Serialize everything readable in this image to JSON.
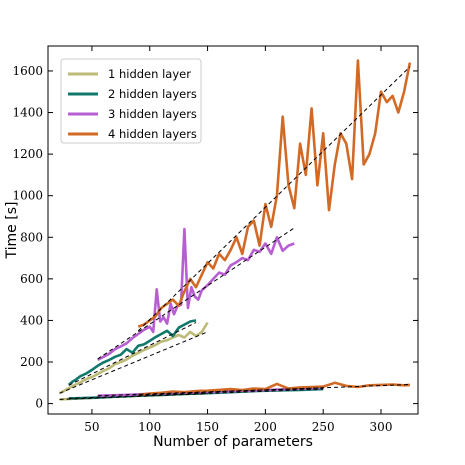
{
  "chart_data": {
    "type": "line",
    "title": "",
    "xlabel": "Number of parameters",
    "ylabel": "Time [s]",
    "xlim": [
      12,
      332
    ],
    "ylim": [
      -50,
      1720
    ],
    "xticks": [
      50,
      100,
      150,
      200,
      250,
      300
    ],
    "yticks": [
      0,
      200,
      400,
      600,
      800,
      1000,
      1200,
      1400,
      1600
    ],
    "grid": false,
    "legend_position": "top-left",
    "series": [
      {
        "name": "1 hidden layer",
        "color": "#bdbb77",
        "upper": {
          "x": [
            22,
            25,
            28,
            32,
            36,
            40,
            45,
            50,
            55,
            60,
            65,
            70,
            75,
            80,
            85,
            90,
            95,
            100,
            105,
            110,
            115,
            120,
            125,
            130,
            135,
            140,
            145,
            150
          ],
          "y": [
            50,
            58,
            68,
            80,
            92,
            102,
            118,
            128,
            142,
            158,
            170,
            190,
            200,
            212,
            230,
            244,
            258,
            270,
            282,
            298,
            305,
            318,
            330,
            318,
            345,
            325,
            345,
            390
          ]
        },
        "lower": {
          "x": [
            22,
            30,
            40,
            50,
            60,
            70,
            80,
            90,
            100,
            110,
            120,
            130,
            140,
            150
          ],
          "y": [
            20,
            22,
            25,
            28,
            30,
            33,
            35,
            38,
            40,
            42,
            44,
            46,
            48,
            50
          ]
        }
      },
      {
        "name": "2 hidden layers",
        "color": "#11786c",
        "upper": {
          "x": [
            30,
            33,
            36,
            40,
            45,
            50,
            55,
            60,
            65,
            70,
            75,
            80,
            85,
            90,
            95,
            100,
            105,
            110,
            115,
            120,
            125,
            130,
            135,
            140
          ],
          "y": [
            90,
            105,
            115,
            132,
            145,
            162,
            182,
            198,
            210,
            225,
            235,
            262,
            245,
            278,
            285,
            302,
            320,
            335,
            350,
            325,
            365,
            380,
            395,
            400
          ]
        },
        "lower": {
          "x": [
            30,
            50,
            70,
            90,
            110,
            130,
            150,
            170,
            190,
            210,
            230,
            250
          ],
          "y": [
            25,
            28,
            33,
            38,
            42,
            46,
            50,
            55,
            60,
            63,
            66,
            70
          ]
        }
      },
      {
        "name": "3 hidden layers",
        "color": "#b85ed3",
        "upper": {
          "x": [
            55,
            60,
            65,
            70,
            75,
            80,
            85,
            90,
            95,
            100,
            103,
            106,
            109,
            112,
            115,
            118,
            121,
            124,
            127,
            130,
            133,
            136,
            139,
            142,
            145,
            150,
            155,
            160,
            165,
            170,
            175,
            180,
            185,
            190,
            195,
            200,
            205,
            210,
            215,
            220,
            225
          ],
          "y": [
            210,
            225,
            240,
            262,
            275,
            290,
            315,
            335,
            355,
            370,
            345,
            550,
            395,
            415,
            385,
            480,
            430,
            470,
            475,
            840,
            460,
            560,
            515,
            500,
            545,
            570,
            600,
            630,
            620,
            665,
            680,
            700,
            690,
            740,
            730,
            770,
            720,
            800,
            735,
            760,
            770
          ]
        },
        "lower": {
          "x": [
            55,
            80,
            105,
            130,
            155,
            180,
            205,
            230,
            250
          ],
          "y": [
            38,
            42,
            48,
            52,
            56,
            62,
            66,
            72,
            76
          ]
        }
      },
      {
        "name": "4 hidden layers",
        "color": "#d26a26",
        "upper": {
          "x": [
            90,
            95,
            100,
            105,
            110,
            115,
            120,
            125,
            130,
            135,
            140,
            145,
            150,
            155,
            160,
            165,
            170,
            175,
            180,
            185,
            190,
            195,
            200,
            205,
            210,
            215,
            220,
            225,
            230,
            235,
            240,
            245,
            250,
            255,
            260,
            265,
            270,
            275,
            280,
            285,
            290,
            295,
            300,
            305,
            310,
            315,
            320,
            325
          ],
          "y": [
            370,
            380,
            400,
            420,
            460,
            480,
            500,
            470,
            540,
            600,
            560,
            620,
            680,
            650,
            720,
            690,
            740,
            800,
            720,
            850,
            880,
            760,
            960,
            850,
            1000,
            1380,
            1050,
            940,
            1250,
            1100,
            1420,
            1050,
            1300,
            930,
            1150,
            1300,
            1250,
            1080,
            1650,
            1150,
            1200,
            1300,
            1500,
            1450,
            1480,
            1400,
            1500,
            1640
          ]
        },
        "lower": {
          "x": [
            90,
            100,
            110,
            120,
            130,
            140,
            150,
            160,
            170,
            180,
            190,
            200,
            210,
            220,
            230,
            240,
            250,
            260,
            270,
            280,
            290,
            300,
            310,
            320,
            325
          ],
          "y": [
            42,
            48,
            52,
            58,
            55,
            60,
            62,
            66,
            70,
            65,
            72,
            70,
            95,
            72,
            78,
            80,
            82,
            100,
            85,
            80,
            88,
            90,
            92,
            88,
            90
          ]
        }
      }
    ],
    "fits": [
      {
        "x": [
          22,
          150
        ],
        "y": [
          50,
          345
        ]
      },
      {
        "x": [
          30,
          140
        ],
        "y": [
          88,
          390
        ]
      },
      {
        "x": [
          55,
          225
        ],
        "y": [
          215,
          845
        ]
      },
      {
        "x": [
          90,
          325
        ],
        "y": [
          350,
          1620
        ]
      },
      {
        "x": [
          22,
          150
        ],
        "y": [
          20,
          48
        ]
      },
      {
        "x": [
          30,
          250
        ],
        "y": [
          25,
          70
        ]
      },
      {
        "x": [
          55,
          250
        ],
        "y": [
          38,
          76
        ]
      },
      {
        "x": [
          90,
          325
        ],
        "y": [
          42,
          92
        ]
      }
    ]
  }
}
